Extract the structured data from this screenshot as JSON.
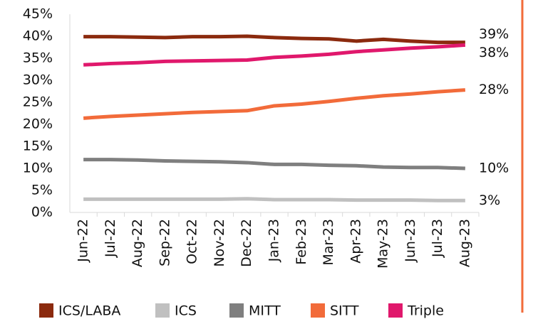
{
  "chart_data": {
    "type": "line",
    "categories": [
      "Jun-22",
      "Jul-22",
      "Aug-22",
      "Sep-22",
      "Oct-22",
      "Nov-22",
      "Dec-22",
      "Jan-23",
      "Feb-23",
      "Mar-23",
      "Apr-23",
      "May-23",
      "Jun-23",
      "Jul-23",
      "Aug-23"
    ],
    "series": [
      {
        "name": "ICS/LABA",
        "color": "#8b2a0e",
        "values": [
          39.9,
          39.9,
          39.8,
          39.7,
          39.9,
          39.9,
          40.0,
          39.7,
          39.5,
          39.4,
          38.9,
          39.3,
          38.9,
          38.6,
          38.6
        ],
        "value_labels": [
          null,
          null,
          null,
          null,
          null,
          null,
          null,
          null,
          null,
          null,
          null,
          null,
          null,
          null,
          "39%"
        ]
      },
      {
        "name": "ICS",
        "color": "#c0c0c0",
        "values": [
          3.0,
          3.0,
          3.0,
          3.0,
          3.0,
          3.0,
          3.1,
          2.9,
          2.9,
          2.9,
          2.8,
          2.8,
          2.8,
          2.7,
          2.7
        ],
        "value_labels": [
          null,
          null,
          null,
          null,
          null,
          null,
          null,
          null,
          null,
          null,
          null,
          null,
          null,
          null,
          "3%"
        ]
      },
      {
        "name": "MITT",
        "color": "#7f7f7f",
        "values": [
          12.0,
          12.0,
          11.9,
          11.7,
          11.6,
          11.5,
          11.3,
          10.9,
          10.9,
          10.7,
          10.6,
          10.3,
          10.2,
          10.2,
          10.0
        ],
        "value_labels": [
          null,
          null,
          null,
          null,
          null,
          null,
          null,
          null,
          null,
          null,
          null,
          null,
          null,
          null,
          "10%"
        ]
      },
      {
        "name": "SITT",
        "color": "#f26b3a",
        "values": [
          21.4,
          21.8,
          22.1,
          22.4,
          22.7,
          22.9,
          23.1,
          24.2,
          24.6,
          25.2,
          25.9,
          26.5,
          26.9,
          27.4,
          27.8
        ],
        "value_labels": [
          null,
          null,
          null,
          null,
          null,
          null,
          null,
          null,
          null,
          null,
          null,
          null,
          null,
          null,
          "28%"
        ]
      },
      {
        "name": "Triple",
        "color": "#e0186c",
        "values": [
          33.5,
          33.8,
          34.0,
          34.3,
          34.4,
          34.5,
          34.6,
          35.2,
          35.5,
          35.9,
          36.5,
          36.9,
          37.3,
          37.6,
          38.0
        ],
        "value_labels": [
          null,
          null,
          null,
          null,
          null,
          null,
          null,
          null,
          null,
          null,
          null,
          null,
          null,
          null,
          "38%"
        ]
      }
    ],
    "ylim": [
      0,
      45
    ],
    "yticks": [
      {
        "value": 0,
        "label": "0%"
      },
      {
        "value": 5,
        "label": "5%"
      },
      {
        "value": 10,
        "label": "10%"
      },
      {
        "value": 15,
        "label": "15%"
      },
      {
        "value": 20,
        "label": "20%"
      },
      {
        "value": 25,
        "label": "25%"
      },
      {
        "value": 30,
        "label": "30%"
      },
      {
        "value": 35,
        "label": "35%"
      },
      {
        "value": 40,
        "label": "40%"
      },
      {
        "value": 45,
        "label": "45%"
      }
    ],
    "grid": false
  }
}
